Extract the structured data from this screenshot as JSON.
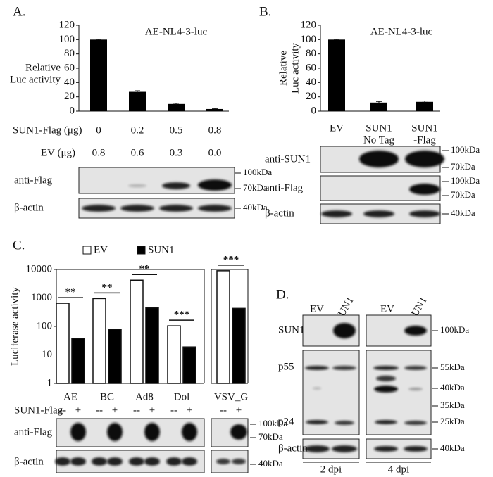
{
  "chart_data": [
    {
      "type": "bar",
      "panel": "A.",
      "title": "AE-NL4-3-luc",
      "ylabel": [
        "Relative",
        "Luc activity"
      ],
      "categories": [
        null,
        null,
        null,
        null
      ],
      "values": [
        100,
        27,
        10,
        3
      ],
      "errors": [
        0.5,
        1.5,
        1,
        0.6
      ],
      "color": "#000000",
      "ylim": [
        0,
        120
      ],
      "yticks": [
        0,
        20,
        40,
        60,
        80,
        100,
        120
      ],
      "rows": [
        {
          "label": "SUN1-Flag (μg)",
          "cells": [
            "0",
            "0.2",
            "0.5",
            "0.8"
          ]
        },
        {
          "label": "EV (μg)",
          "cells": [
            "0.8",
            "0.6",
            "0.3",
            "0.0"
          ]
        }
      ],
      "blot_labels": [
        "anti-Flag",
        "β-actin"
      ],
      "markers": [
        "100kDa",
        "70kDa",
        "40kDa"
      ]
    },
    {
      "type": "bar",
      "panel": "B.",
      "title": "AE-NL4-3-luc",
      "ylabel": [
        "Relative",
        "Luc activity"
      ],
      "categories": [
        [
          "EV"
        ],
        [
          "SUN1",
          "No Tag"
        ],
        [
          "SUN1",
          "-Flag"
        ]
      ],
      "values": [
        100,
        12,
        13
      ],
      "errors": [
        0.5,
        1.5,
        1.2
      ],
      "color": "#000000",
      "ylim": [
        0,
        120
      ],
      "yticks": [
        0,
        20,
        40,
        60,
        80,
        100,
        120
      ],
      "blot_labels": [
        "anti-SUN1",
        "anti-Flag",
        "β-actin"
      ],
      "markers": [
        "100kDa",
        "70kDa",
        "100kDa",
        "70kDa",
        "40kDa"
      ]
    },
    {
      "type": "bar",
      "panel": "C.",
      "ylabel": "Luciferase activity",
      "log_scale": true,
      "categories": [
        "AE",
        "BC",
        "Ad8",
        "Dol"
      ],
      "series": [
        {
          "name": "EV",
          "color": "#ffffff",
          "values": [
            650,
            950,
            4200,
            105
          ]
        },
        {
          "name": "SUN1",
          "color": "#000000",
          "values": [
            38,
            80,
            450,
            19
          ]
        }
      ],
      "significance": [
        "**",
        "**",
        "**",
        "***"
      ],
      "legend": "top",
      "ylim": [
        1,
        10000
      ],
      "yticks": [
        1,
        10,
        100,
        1000,
        10000
      ],
      "rows": [
        {
          "label": "SUN1-Flag",
          "cells": [
            [
              "--",
              "+"
            ],
            [
              "--",
              "+"
            ],
            [
              "--",
              "+"
            ],
            [
              "--",
              "+"
            ]
          ]
        }
      ],
      "blot_labels": [
        "anti-Flag",
        "β-actin"
      ]
    },
    {
      "type": "bar",
      "log_scale": true,
      "categories": [
        "VSV_G"
      ],
      "series": [
        {
          "color": "#ffffff",
          "values": [
            9000
          ]
        },
        {
          "color": "#000000",
          "values": [
            430
          ]
        }
      ],
      "significance": [
        "***"
      ],
      "ylim": [
        1,
        10000
      ],
      "rows": [
        {
          "cells": [
            [
              "--",
              "+"
            ]
          ]
        }
      ],
      "markers": [
        "100kDa",
        "70kDa",
        "40kDa"
      ]
    }
  ],
  "panel_d": {
    "label": "D.",
    "lanes": [
      "EV",
      "SUN1",
      "EV",
      "SUN1"
    ],
    "rows": [
      "SUN1",
      "p55",
      "p24",
      "β-actin"
    ],
    "markers": [
      "100kDa",
      "55kDa",
      "40kDa",
      "35kDa",
      "25kDa",
      "40kDa"
    ],
    "timepoints": [
      "2 dpi",
      "4 dpi"
    ]
  }
}
